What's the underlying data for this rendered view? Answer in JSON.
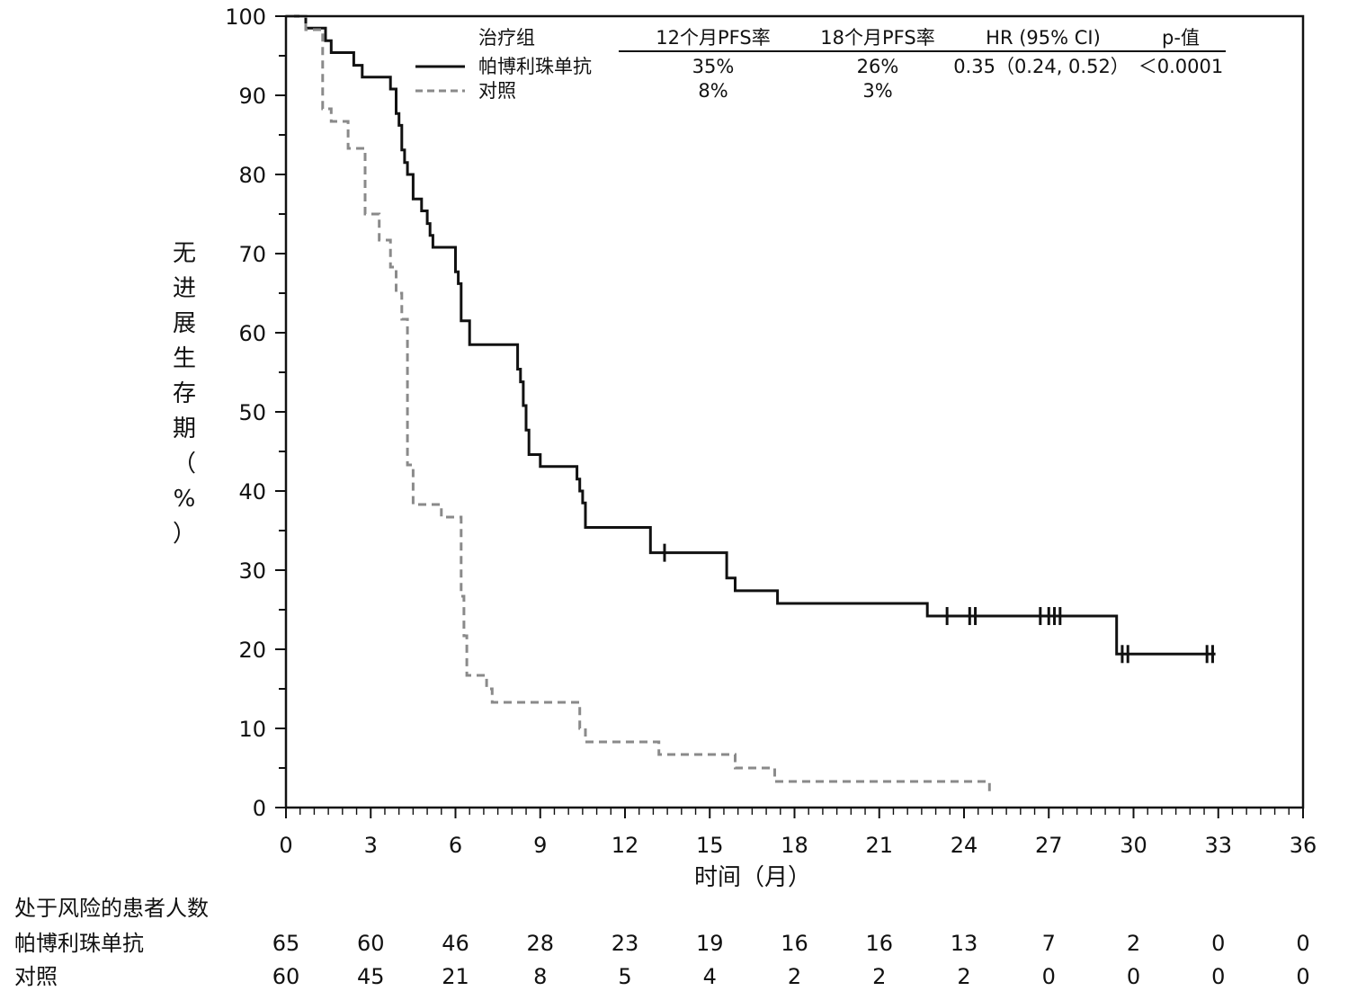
{
  "chart_data": {
    "type": "line",
    "subtype": "kaplan-meier step",
    "xlabel": "时间（月）",
    "ylabel": "无进展生存期（%）",
    "xlim": [
      0,
      36
    ],
    "ylim": [
      0,
      100
    ],
    "xticks": [
      0,
      3,
      6,
      9,
      12,
      15,
      18,
      21,
      24,
      27,
      30,
      33,
      36
    ],
    "yticks": [
      0,
      10,
      20,
      30,
      40,
      50,
      60,
      70,
      80,
      90,
      100
    ],
    "legend": {
      "headers": [
        "治疗组",
        "12个月PFS率",
        "18个月PFS率",
        "HR (95% CI)",
        "p-值"
      ],
      "rows": [
        {
          "name": "帕博利珠单抗",
          "pfs12": "35%",
          "pfs18": "26%",
          "hr": "0.35（0.24, 0.52）",
          "p": "＜0.0001"
        },
        {
          "name": "对照",
          "pfs12": "8%",
          "pfs18": "3%",
          "hr": "",
          "p": ""
        }
      ]
    },
    "series": [
      {
        "name": "帕博利珠单抗",
        "style": "solid",
        "color": "#111111",
        "points": [
          [
            0,
            100
          ],
          [
            0.7,
            100
          ],
          [
            0.7,
            98.5
          ],
          [
            1.4,
            98.5
          ],
          [
            1.4,
            96.9
          ],
          [
            1.6,
            96.9
          ],
          [
            1.6,
            95.4
          ],
          [
            2.4,
            95.4
          ],
          [
            2.4,
            93.8
          ],
          [
            2.7,
            93.8
          ],
          [
            2.7,
            92.3
          ],
          [
            3.7,
            92.3
          ],
          [
            3.7,
            90.8
          ],
          [
            3.9,
            90.8
          ],
          [
            3.9,
            87.7
          ],
          [
            4.0,
            87.7
          ],
          [
            4.0,
            86.2
          ],
          [
            4.1,
            86.2
          ],
          [
            4.1,
            83.1
          ],
          [
            4.2,
            83.1
          ],
          [
            4.2,
            81.5
          ],
          [
            4.3,
            81.5
          ],
          [
            4.3,
            80.0
          ],
          [
            4.5,
            80.0
          ],
          [
            4.5,
            76.9
          ],
          [
            4.8,
            76.9
          ],
          [
            4.8,
            75.4
          ],
          [
            5.0,
            75.4
          ],
          [
            5.0,
            73.8
          ],
          [
            5.1,
            73.8
          ],
          [
            5.1,
            72.3
          ],
          [
            5.2,
            72.3
          ],
          [
            5.2,
            70.8
          ],
          [
            6.0,
            70.8
          ],
          [
            6.0,
            67.7
          ],
          [
            6.1,
            67.7
          ],
          [
            6.1,
            66.2
          ],
          [
            6.2,
            66.2
          ],
          [
            6.2,
            61.5
          ],
          [
            6.5,
            61.5
          ],
          [
            6.5,
            58.5
          ],
          [
            8.2,
            58.5
          ],
          [
            8.2,
            55.4
          ],
          [
            8.3,
            55.4
          ],
          [
            8.3,
            53.8
          ],
          [
            8.4,
            53.8
          ],
          [
            8.4,
            50.8
          ],
          [
            8.5,
            50.8
          ],
          [
            8.5,
            47.7
          ],
          [
            8.6,
            47.7
          ],
          [
            8.6,
            44.6
          ],
          [
            9.0,
            44.6
          ],
          [
            9.0,
            43.1
          ],
          [
            10.3,
            43.1
          ],
          [
            10.3,
            41.5
          ],
          [
            10.4,
            41.5
          ],
          [
            10.4,
            40.0
          ],
          [
            10.5,
            40.0
          ],
          [
            10.5,
            38.5
          ],
          [
            10.6,
            38.5
          ],
          [
            10.6,
            35.4
          ],
          [
            12.9,
            35.4
          ],
          [
            12.9,
            32.2
          ],
          [
            15.6,
            32.2
          ],
          [
            15.6,
            29.0
          ],
          [
            15.9,
            29.0
          ],
          [
            15.9,
            27.4
          ],
          [
            17.4,
            27.4
          ],
          [
            17.4,
            25.8
          ],
          [
            22.7,
            25.8
          ],
          [
            22.7,
            24.2
          ],
          [
            29.4,
            24.2
          ],
          [
            29.4,
            19.4
          ],
          [
            32.9,
            19.4
          ]
        ],
        "censored": [
          [
            13.4,
            32.2
          ],
          [
            23.4,
            24.2
          ],
          [
            24.2,
            24.2
          ],
          [
            24.4,
            24.2
          ],
          [
            26.7,
            24.2
          ],
          [
            27.0,
            24.2
          ],
          [
            27.2,
            24.2
          ],
          [
            27.4,
            24.2
          ],
          [
            29.6,
            19.4
          ],
          [
            29.8,
            19.4
          ],
          [
            32.6,
            19.4
          ],
          [
            32.8,
            19.4
          ]
        ]
      },
      {
        "name": "对照",
        "style": "dashed",
        "color": "#8a8a8a",
        "points": [
          [
            0,
            100
          ],
          [
            0.7,
            100
          ],
          [
            0.7,
            98.3
          ],
          [
            1.3,
            98.3
          ],
          [
            1.3,
            88.3
          ],
          [
            1.6,
            88.3
          ],
          [
            1.6,
            86.7
          ],
          [
            2.2,
            86.7
          ],
          [
            2.2,
            83.3
          ],
          [
            2.8,
            83.3
          ],
          [
            2.8,
            75.0
          ],
          [
            3.3,
            75.0
          ],
          [
            3.3,
            71.7
          ],
          [
            3.7,
            71.7
          ],
          [
            3.7,
            68.3
          ],
          [
            3.9,
            68.3
          ],
          [
            3.9,
            65.0
          ],
          [
            4.1,
            65.0
          ],
          [
            4.1,
            61.7
          ],
          [
            4.3,
            61.7
          ],
          [
            4.3,
            43.3
          ],
          [
            4.5,
            43.3
          ],
          [
            4.5,
            38.3
          ],
          [
            5.5,
            38.3
          ],
          [
            5.5,
            36.7
          ],
          [
            6.2,
            36.7
          ],
          [
            6.2,
            26.7
          ],
          [
            6.3,
            26.7
          ],
          [
            6.3,
            21.7
          ],
          [
            6.4,
            21.7
          ],
          [
            6.4,
            16.7
          ],
          [
            7.1,
            16.7
          ],
          [
            7.1,
            15.0
          ],
          [
            7.3,
            15.0
          ],
          [
            7.3,
            13.3
          ],
          [
            10.4,
            13.3
          ],
          [
            10.4,
            10.0
          ],
          [
            10.6,
            10.0
          ],
          [
            10.6,
            8.3
          ],
          [
            13.2,
            8.3
          ],
          [
            13.2,
            6.7
          ],
          [
            15.9,
            6.7
          ],
          [
            15.9,
            5.0
          ],
          [
            17.3,
            5.0
          ],
          [
            17.3,
            3.3
          ],
          [
            24.9,
            3.3
          ],
          [
            24.9,
            1.5
          ]
        ],
        "censored": []
      }
    ],
    "risk_table": {
      "title": "处于风险的患者人数",
      "times": [
        0,
        3,
        6,
        9,
        12,
        15,
        18,
        21,
        24,
        27,
        30,
        33,
        36
      ],
      "rows": [
        {
          "label": "帕博利珠单抗",
          "values": [
            "65",
            "60",
            "46",
            "28",
            "23",
            "19",
            "16",
            "16",
            "13",
            "7",
            "2",
            "0",
            "0"
          ]
        },
        {
          "label": "对照",
          "values": [
            "60",
            "45",
            "21",
            "8",
            "5",
            "4",
            "2",
            "2",
            "2",
            "0",
            "0",
            "0",
            "0"
          ]
        }
      ]
    }
  }
}
